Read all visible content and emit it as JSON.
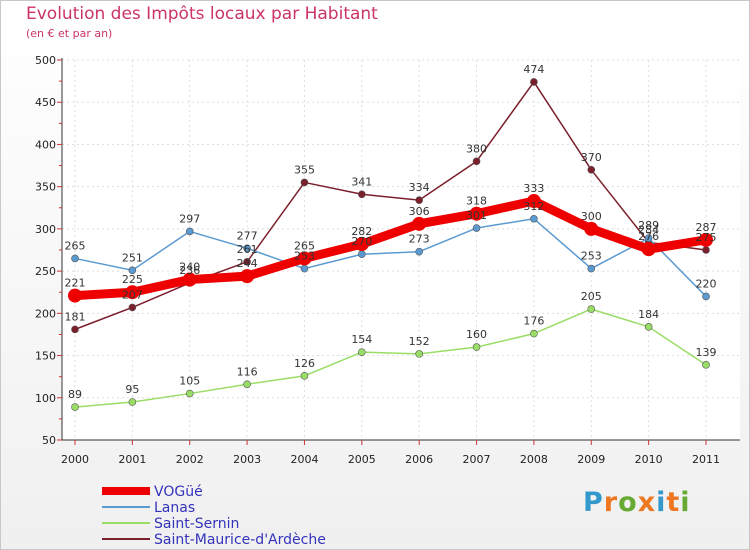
{
  "chart_data": {
    "type": "line",
    "title": "Evolution des Impôts locaux par Habitant",
    "subtitle": "(en € et par an)",
    "x": [
      "2000",
      "2001",
      "2002",
      "2003",
      "2004",
      "2005",
      "2006",
      "2007",
      "2008",
      "2009",
      "2010",
      "2011"
    ],
    "ylim": [
      50,
      500
    ],
    "yticks": [
      50,
      100,
      150,
      200,
      250,
      300,
      350,
      400,
      450,
      500
    ],
    "series": [
      {
        "name": "Saint-Maurice-d'Ardèche",
        "color": "#7a1f2b",
        "values": [
          181,
          207,
          236,
          261,
          355,
          341,
          334,
          380,
          474,
          370,
          284,
          275
        ]
      },
      {
        "name": "Saint-Sernin",
        "color": "#99dd66",
        "values": [
          89,
          95,
          105,
          116,
          126,
          154,
          152,
          160,
          176,
          205,
          184,
          139
        ]
      },
      {
        "name": "Lanas",
        "color": "#5b9ad0",
        "values": [
          265,
          251,
          297,
          277,
          253,
          270,
          273,
          301,
          312,
          253,
          289,
          220
        ]
      },
      {
        "name": "VOGüé",
        "color": "#ee0000",
        "values": [
          221,
          225,
          240,
          244,
          265,
          282,
          306,
          318,
          333,
          300,
          276,
          287
        ]
      }
    ],
    "legend": [
      "VOGüé",
      "Lanas",
      "Saint-Sernin",
      "Saint-Maurice-d'Ardèche"
    ]
  },
  "logo": {
    "letters": [
      "P",
      "r",
      "o",
      "x",
      "i",
      "t",
      "i"
    ],
    "colors": [
      "#3399cc",
      "#ee7722",
      "#66aa33",
      "#ee7722",
      "#3399cc",
      "#ee7722",
      "#66aa33"
    ]
  }
}
